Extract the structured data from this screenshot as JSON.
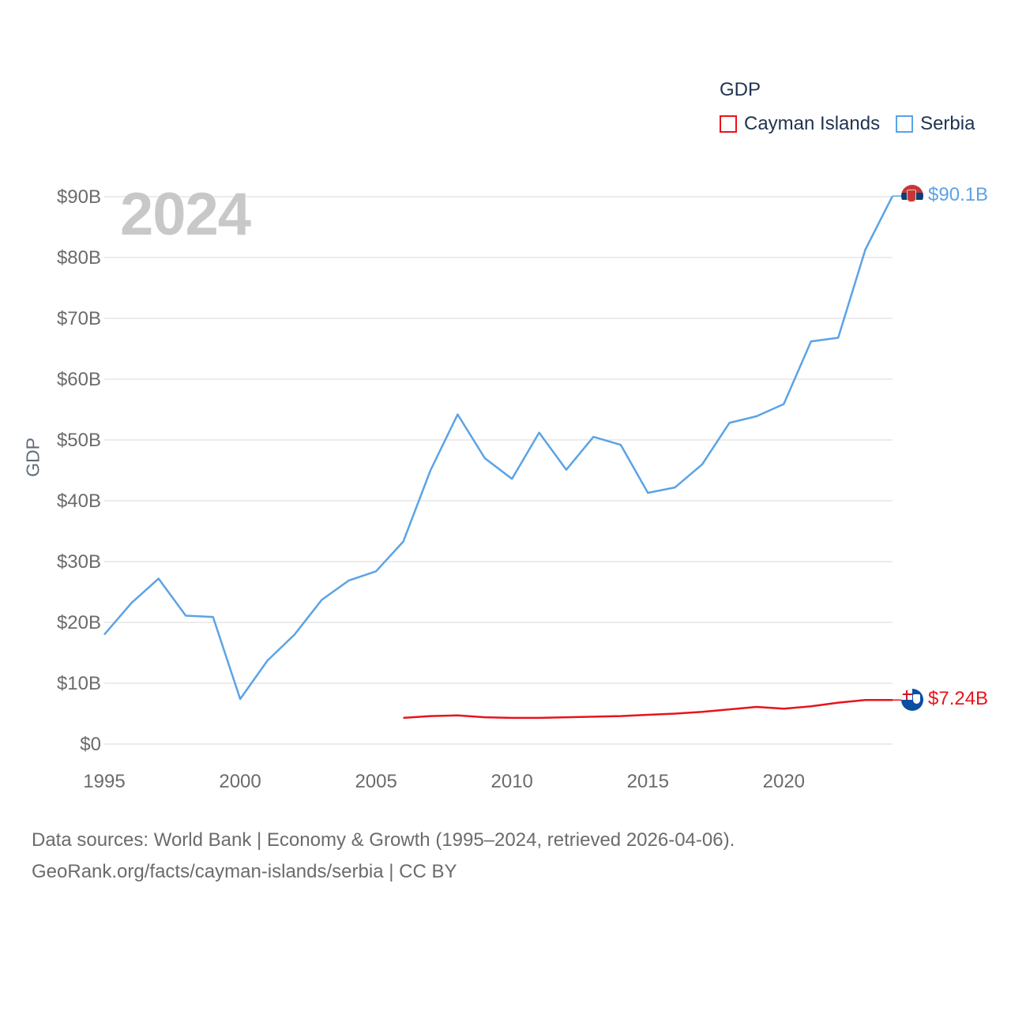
{
  "chart_data": {
    "type": "line",
    "legend_title": "GDP",
    "ylabel": "GDP",
    "xlabel": "",
    "big_year": "2024",
    "x": [
      1995,
      1996,
      1997,
      1998,
      1999,
      2000,
      2001,
      2002,
      2003,
      2004,
      2005,
      2006,
      2007,
      2008,
      2009,
      2010,
      2011,
      2012,
      2013,
      2014,
      2015,
      2016,
      2017,
      2018,
      2019,
      2020,
      2021,
      2022,
      2023,
      2024
    ],
    "xlim": [
      1995,
      2024
    ],
    "ylim": [
      0,
      90
    ],
    "x_ticks": [
      1995,
      2000,
      2005,
      2010,
      2015,
      2020
    ],
    "x_tick_labels": [
      "1995",
      "2000",
      "2005",
      "2010",
      "2015",
      "2020"
    ],
    "y_ticks": [
      0,
      10,
      20,
      30,
      40,
      50,
      60,
      70,
      80,
      90
    ],
    "y_tick_labels": [
      "$0",
      "$10B",
      "$20B",
      "$30B",
      "$40B",
      "$50B",
      "$60B",
      "$70B",
      "$80B",
      "$90B"
    ],
    "grid": true,
    "series": [
      {
        "name": "Cayman Islands",
        "color": "#e8131b",
        "end_label": "$7.24B",
        "values": [
          null,
          null,
          null,
          null,
          null,
          null,
          null,
          null,
          null,
          null,
          null,
          4.3,
          4.6,
          4.7,
          4.4,
          4.3,
          4.3,
          4.4,
          4.5,
          4.6,
          4.8,
          5.0,
          5.3,
          5.7,
          6.1,
          5.8,
          6.2,
          6.8,
          7.24,
          7.24
        ]
      },
      {
        "name": "Serbia",
        "color": "#5ba3e6",
        "end_label": "$90.1B",
        "values": [
          18.0,
          23.2,
          27.2,
          21.1,
          20.9,
          7.4,
          13.7,
          18.0,
          23.7,
          26.9,
          28.4,
          33.3,
          45.0,
          54.2,
          47.0,
          43.6,
          51.2,
          45.1,
          50.5,
          49.2,
          41.3,
          42.2,
          46.0,
          52.8,
          53.9,
          55.9,
          66.2,
          66.8,
          81.3,
          90.1
        ]
      }
    ]
  },
  "source": {
    "line1": "Data sources: World Bank | Economy & Growth (1995–2024, retrieved 2026-04-06).",
    "line2": "GeoRank.org/facts/cayman-islands/serbia | CC BY"
  }
}
